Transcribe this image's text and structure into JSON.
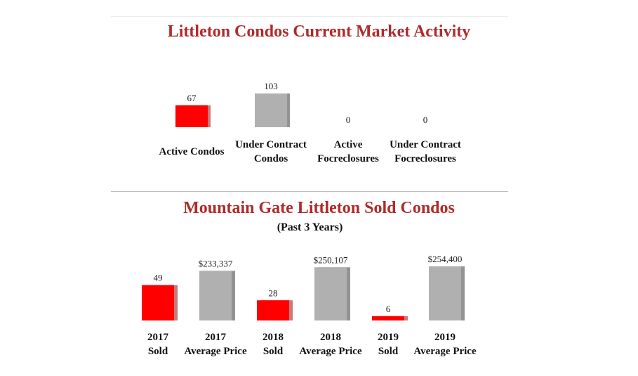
{
  "chart_data": [
    {
      "type": "bar",
      "title": "Littleton Condos Current Market Activity",
      "categories": [
        "Active Condos",
        "Under Contract Condos",
        "Active Focreclosures",
        "Under Contract Focreclosures"
      ],
      "category_lines": [
        [
          "Active Condos"
        ],
        [
          "Under Contract",
          "Condos"
        ],
        [
          "Active",
          "Focreclosures"
        ],
        [
          "Under Contract",
          "Focreclosures"
        ]
      ],
      "values": [
        67,
        103,
        0,
        0
      ],
      "value_labels": [
        "67",
        "103",
        "0",
        "0"
      ],
      "colors": [
        "#ff0000",
        "#b0b0b0",
        "#b0b0b0",
        "#b0b0b0"
      ],
      "ylim": [
        0,
        103
      ]
    },
    {
      "type": "bar",
      "title": "Mountain Gate Littleton Sold Condos",
      "subtitle": "(Past 3 Years)",
      "categories": [
        "2017 Sold",
        "2017 Average Price",
        "2018 Sold",
        "2018 Average Price",
        "2019 Sold",
        "2019 Average Price"
      ],
      "category_lines": [
        [
          "2017",
          "Sold"
        ],
        [
          "2017",
          "Average Price"
        ],
        [
          "2018",
          "Sold"
        ],
        [
          "2018",
          "Average Price"
        ],
        [
          "2019",
          "Sold"
        ],
        [
          "2019",
          "Average Price"
        ]
      ],
      "values": [
        49,
        233337,
        28,
        250107,
        6,
        254400
      ],
      "value_labels": [
        "49",
        "$233,337",
        "28",
        "$250,107",
        "6",
        "$254,400"
      ],
      "kinds": [
        "count",
        "price",
        "count",
        "price",
        "count",
        "price"
      ],
      "count_ylim": [
        0,
        75
      ],
      "price_ylim": [
        0,
        254400
      ],
      "colors": [
        "#ff0000",
        "#b0b0b0",
        "#ff0000",
        "#b0b0b0",
        "#ff0000",
        "#b0b0b0"
      ]
    }
  ]
}
